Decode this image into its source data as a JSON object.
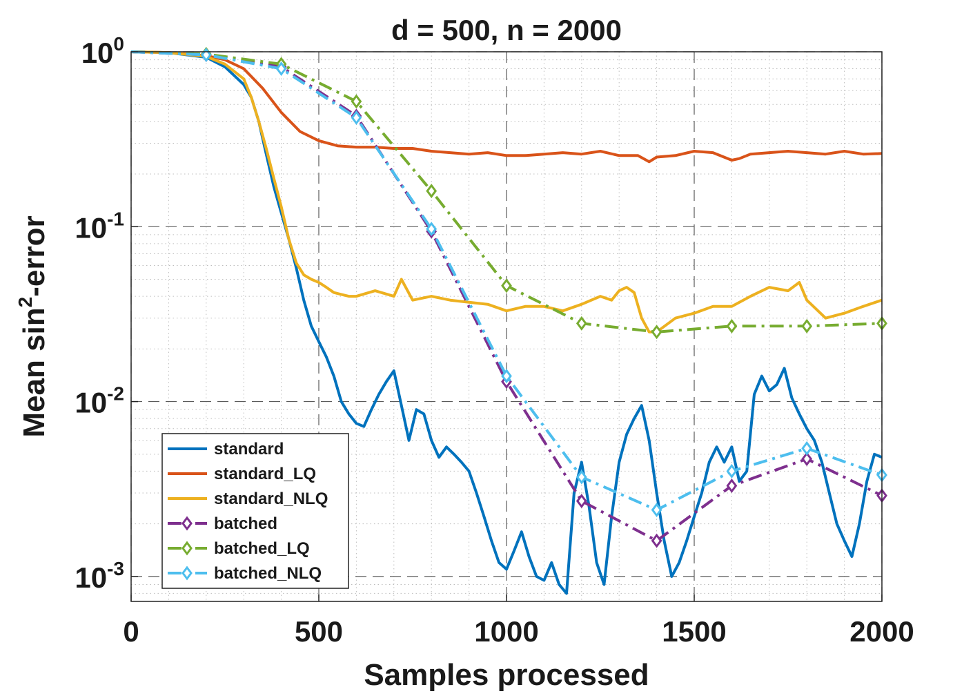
{
  "chart_data": {
    "type": "line",
    "title": "d = 500, n = 2000",
    "xlabel": "Samples processed",
    "ylabel_parts": {
      "pre": "Mean sin",
      "sup": "2",
      "post": "-error"
    },
    "xscale": "linear",
    "yscale": "log",
    "xlim": [
      0,
      2000
    ],
    "ylim": [
      0.00072,
      1.0
    ],
    "xticks": [
      0,
      500,
      1000,
      1500,
      2000
    ],
    "yticks": [
      {
        "value": 1,
        "base": "10",
        "exp": "0"
      },
      {
        "value": 0.1,
        "base": "10",
        "exp": "-1"
      },
      {
        "value": 0.01,
        "base": "10",
        "exp": "-2"
      },
      {
        "value": 0.001,
        "base": "10",
        "exp": "-3"
      }
    ],
    "grid": true,
    "legend_position": "bottom-left",
    "series": [
      {
        "name": "standard",
        "color": "#0072BD",
        "style": "solid",
        "marker": "none",
        "x": [
          0,
          100,
          200,
          250,
          300,
          320,
          340,
          360,
          380,
          400,
          420,
          440,
          460,
          480,
          500,
          520,
          540,
          560,
          580,
          600,
          620,
          640,
          660,
          680,
          700,
          720,
          740,
          760,
          780,
          800,
          820,
          840,
          860,
          880,
          900,
          920,
          940,
          960,
          980,
          1000,
          1020,
          1040,
          1060,
          1080,
          1100,
          1120,
          1140,
          1160,
          1180,
          1200,
          1220,
          1240,
          1260,
          1280,
          1300,
          1320,
          1340,
          1360,
          1380,
          1400,
          1420,
          1440,
          1460,
          1480,
          1500,
          1520,
          1540,
          1560,
          1580,
          1600,
          1620,
          1640,
          1660,
          1680,
          1700,
          1720,
          1740,
          1760,
          1780,
          1800,
          1820,
          1840,
          1860,
          1880,
          1900,
          1920,
          1940,
          1960,
          1980,
          2000
        ],
        "values": [
          1.0,
          0.99,
          0.93,
          0.82,
          0.65,
          0.55,
          0.4,
          0.26,
          0.17,
          0.12,
          0.085,
          0.058,
          0.038,
          0.027,
          0.022,
          0.018,
          0.014,
          0.01,
          0.0085,
          0.0075,
          0.0072,
          0.009,
          0.011,
          0.013,
          0.015,
          0.0095,
          0.006,
          0.009,
          0.0085,
          0.006,
          0.0048,
          0.0055,
          0.005,
          0.0045,
          0.004,
          0.003,
          0.0022,
          0.0016,
          0.0012,
          0.0011,
          0.0014,
          0.0018,
          0.0013,
          0.001,
          0.00095,
          0.0012,
          0.0009,
          0.0008,
          0.003,
          0.0045,
          0.0025,
          0.0012,
          0.0009,
          0.0022,
          0.0045,
          0.0065,
          0.008,
          0.0095,
          0.006,
          0.003,
          0.0016,
          0.001,
          0.0012,
          0.0016,
          0.0022,
          0.003,
          0.0045,
          0.0055,
          0.0045,
          0.0055,
          0.0035,
          0.004,
          0.011,
          0.014,
          0.0115,
          0.0125,
          0.0155,
          0.0105,
          0.0085,
          0.007,
          0.006,
          0.0045,
          0.003,
          0.002,
          0.0016,
          0.0013,
          0.002,
          0.0035,
          0.005,
          0.0048
        ]
      },
      {
        "name": "standard_LQ",
        "color": "#D95319",
        "style": "solid",
        "marker": "none",
        "x": [
          0,
          100,
          200,
          250,
          300,
          350,
          400,
          450,
          500,
          550,
          600,
          650,
          700,
          750,
          800,
          850,
          900,
          950,
          1000,
          1050,
          1100,
          1150,
          1200,
          1250,
          1300,
          1350,
          1380,
          1400,
          1450,
          1500,
          1550,
          1600,
          1620,
          1650,
          1700,
          1750,
          1800,
          1850,
          1900,
          1950,
          2000
        ],
        "values": [
          1.0,
          0.99,
          0.95,
          0.9,
          0.8,
          0.62,
          0.45,
          0.35,
          0.31,
          0.29,
          0.285,
          0.285,
          0.28,
          0.28,
          0.27,
          0.265,
          0.26,
          0.265,
          0.255,
          0.255,
          0.26,
          0.265,
          0.26,
          0.27,
          0.255,
          0.255,
          0.235,
          0.25,
          0.255,
          0.27,
          0.265,
          0.24,
          0.245,
          0.26,
          0.265,
          0.27,
          0.265,
          0.26,
          0.27,
          0.26,
          0.262
        ]
      },
      {
        "name": "standard_NLQ",
        "color": "#EDB120",
        "style": "solid",
        "marker": "none",
        "x": [
          0,
          100,
          200,
          250,
          300,
          320,
          340,
          360,
          380,
          400,
          420,
          440,
          460,
          480,
          500,
          520,
          540,
          560,
          580,
          600,
          650,
          700,
          720,
          750,
          800,
          850,
          900,
          950,
          1000,
          1050,
          1100,
          1150,
          1200,
          1250,
          1280,
          1300,
          1320,
          1340,
          1360,
          1380,
          1400,
          1450,
          1500,
          1550,
          1600,
          1650,
          1700,
          1750,
          1780,
          1800,
          1850,
          1900,
          1950,
          2000
        ],
        "values": [
          1.0,
          0.99,
          0.94,
          0.85,
          0.7,
          0.55,
          0.4,
          0.28,
          0.19,
          0.13,
          0.085,
          0.062,
          0.053,
          0.05,
          0.048,
          0.045,
          0.042,
          0.041,
          0.04,
          0.04,
          0.043,
          0.04,
          0.05,
          0.038,
          0.04,
          0.038,
          0.037,
          0.036,
          0.033,
          0.035,
          0.035,
          0.033,
          0.036,
          0.04,
          0.038,
          0.043,
          0.045,
          0.042,
          0.03,
          0.025,
          0.025,
          0.03,
          0.032,
          0.035,
          0.035,
          0.04,
          0.045,
          0.043,
          0.048,
          0.038,
          0.03,
          0.032,
          0.035,
          0.038
        ]
      },
      {
        "name": "batched",
        "color": "#7E2F8E",
        "style": "dashdot",
        "marker": "diamond",
        "x": [
          0,
          200,
          400,
          600,
          800,
          1000,
          1200,
          1400,
          1600,
          1800,
          2000
        ],
        "values": [
          1.0,
          0.96,
          0.82,
          0.43,
          0.094,
          0.013,
          0.0027,
          0.0016,
          0.0033,
          0.0047,
          0.0029
        ]
      },
      {
        "name": "batched_LQ",
        "color": "#77AC30",
        "style": "dashdot",
        "marker": "diamond",
        "x": [
          0,
          200,
          400,
          600,
          800,
          1000,
          1200,
          1400,
          1600,
          1800,
          2000
        ],
        "values": [
          1.0,
          0.97,
          0.85,
          0.52,
          0.16,
          0.046,
          0.028,
          0.025,
          0.027,
          0.027,
          0.028
        ]
      },
      {
        "name": "batched_NLQ",
        "color": "#4DBEEE",
        "style": "dashdot",
        "marker": "diamond",
        "x": [
          0,
          200,
          400,
          600,
          800,
          1000,
          1200,
          1400,
          1600,
          1800,
          2000
        ],
        "values": [
          1.0,
          0.96,
          0.8,
          0.42,
          0.097,
          0.014,
          0.0037,
          0.0024,
          0.004,
          0.0054,
          0.0038
        ]
      }
    ]
  }
}
